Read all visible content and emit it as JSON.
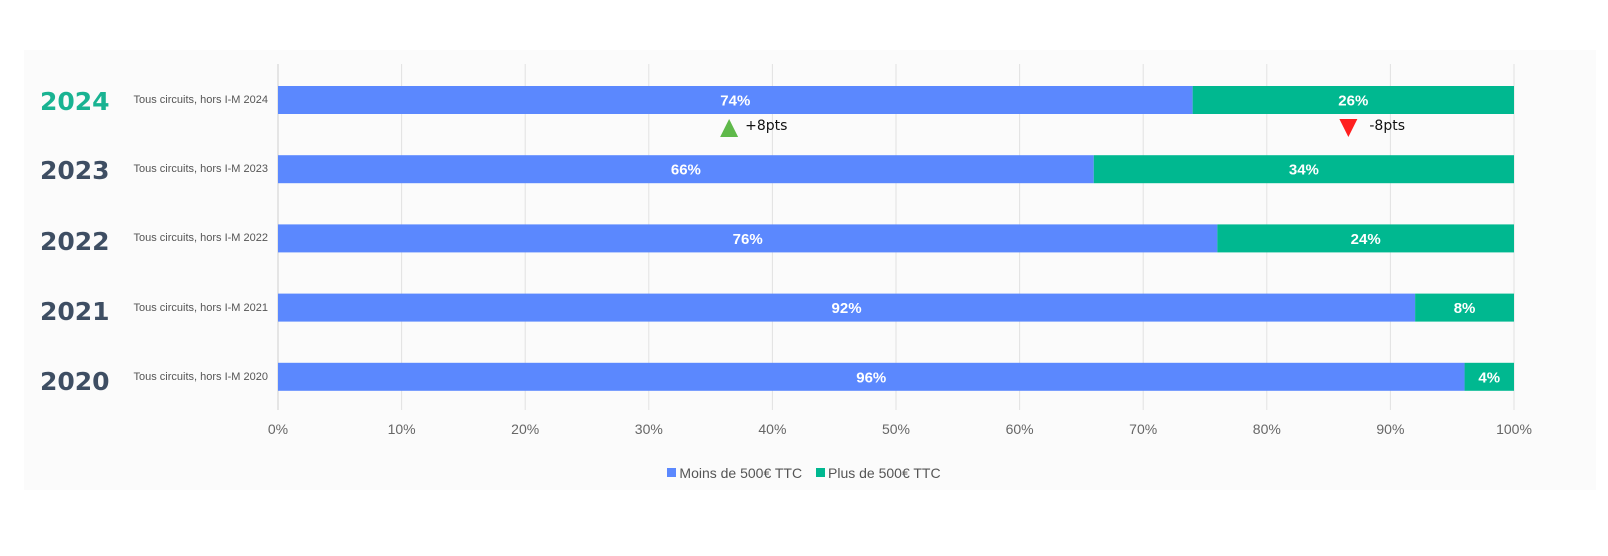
{
  "colors": {
    "under": "#5b88fe",
    "over": "#00b890",
    "up": "#5fb94a",
    "down": "#ff1f1f",
    "year_highlight": "#19b392",
    "year": "#3e4e63"
  },
  "years": [
    "2024",
    "2023",
    "2022",
    "2021",
    "2020"
  ],
  "annotations": [
    {
      "text": "+8pts",
      "direction": "up",
      "x_value": 36.5
    },
    {
      "text": "-8pts",
      "direction": "down",
      "x_value": 86.6
    }
  ],
  "chart_data": {
    "type": "bar",
    "orientation": "horizontal",
    "stacked": true,
    "categories": [
      "Tous circuits, hors I-M 2024",
      "Tous circuits, hors I-M 2023",
      "Tous circuits, hors I-M 2022",
      "Tous circuits, hors I-M 2021",
      "Tous circuits, hors I-M 2020"
    ],
    "series": [
      {
        "name": "Moins de 500€ TTC",
        "values": [
          74,
          66,
          76,
          92,
          96
        ],
        "labels": [
          "74%",
          "66%",
          "76%",
          "92%",
          "96%"
        ]
      },
      {
        "name": "Plus de 500€ TTC",
        "values": [
          26,
          34,
          24,
          8,
          4
        ],
        "labels": [
          "26%",
          "34%",
          "24%",
          "8%",
          "4%"
        ]
      }
    ],
    "xlim": [
      0,
      100
    ],
    "xticks": [
      "0%",
      "10%",
      "20%",
      "30%",
      "40%",
      "50%",
      "60%",
      "70%",
      "80%",
      "90%",
      "100%"
    ],
    "grid": true,
    "legend_position": "bottom"
  }
}
